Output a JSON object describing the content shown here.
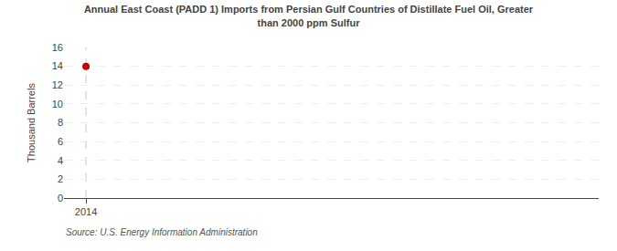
{
  "chart_data": {
    "type": "scatter",
    "title": "Annual East Coast (PADD 1) Imports from Persian Gulf Countries of Distillate Fuel Oil, Greater\nthan 2000 ppm Sulfur",
    "ylabel": "Thousand Barrels",
    "source": "Source: U.S. Energy Information Administration",
    "x": [
      2014
    ],
    "values": [
      14
    ],
    "color": "#cc0000",
    "marker": "circle",
    "xlim": [
      2013.7,
      2021.0
    ],
    "xticks": [
      2014
    ],
    "ylim": [
      0,
      16
    ],
    "yticks": [
      0,
      2,
      4,
      6,
      8,
      10,
      12,
      14,
      16
    ],
    "vlines": [
      2014
    ],
    "grid": "y"
  }
}
